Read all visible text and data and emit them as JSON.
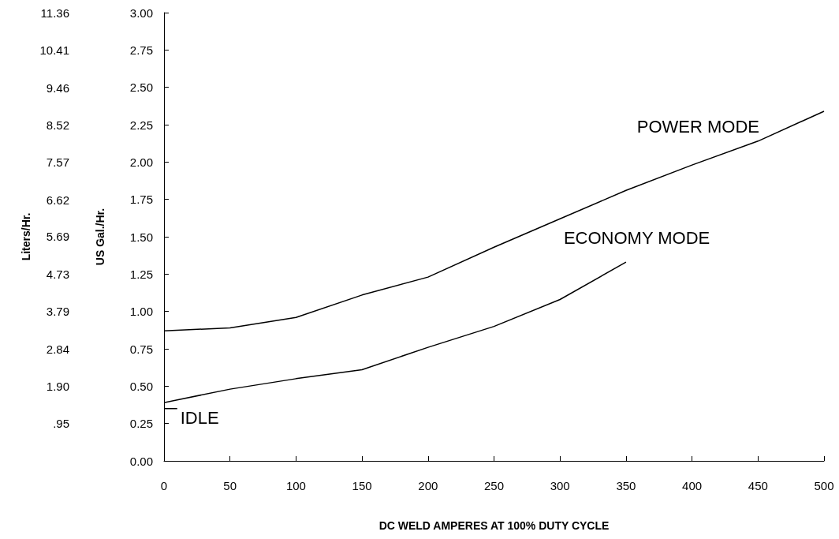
{
  "chart_data": {
    "type": "line",
    "xlabel": "DC WELD AMPERES AT 100% DUTY CYCLE",
    "ylabel": "US Gal./Hr.",
    "y2label": "Liters/Hr.",
    "xlim": [
      0,
      500
    ],
    "xticks": [
      0,
      50,
      100,
      150,
      200,
      250,
      300,
      350,
      400,
      450,
      500
    ],
    "ylim": [
      0,
      3
    ],
    "yticks": [
      {
        "value": 0,
        "label": "0.00"
      },
      {
        "value": 0.25,
        "label": "0.25"
      },
      {
        "value": 0.5,
        "label": "0.50"
      },
      {
        "value": 0.75,
        "label": "0.75"
      },
      {
        "value": 1,
        "label": "1.00"
      },
      {
        "value": 1.25,
        "label": "1.25"
      },
      {
        "value": 1.5,
        "label": "1.50"
      },
      {
        "value": 1.75,
        "label": "1.75"
      },
      {
        "value": 2,
        "label": "2.00"
      },
      {
        "value": 2.25,
        "label": "2.25"
      },
      {
        "value": 2.5,
        "label": "2.50"
      },
      {
        "value": 2.75,
        "label": "2.75"
      },
      {
        "value": 3,
        "label": "3.00"
      }
    ],
    "y2lim": [
      0,
      11.36
    ],
    "y2ticks": [
      {
        "value": 0.95,
        "label": ".95"
      },
      {
        "value": 1.9,
        "label": "1.90"
      },
      2.84,
      3.79,
      4.73,
      5.69,
      6.62,
      7.57,
      8.52,
      9.46,
      10.41,
      11.36
    ],
    "grid": false,
    "legend": false,
    "marker": "none",
    "line_style": "solid",
    "series": [
      {
        "name": "POWER MODE",
        "color": "#000000",
        "x": [
          0,
          50,
          100,
          150,
          200,
          250,
          300,
          350,
          400,
          450,
          500
        ],
        "values": [
          0.87,
          0.89,
          0.96,
          1.11,
          1.23,
          1.43,
          1.62,
          1.81,
          1.98,
          2.14,
          2.34
        ]
      },
      {
        "name": "ECONOMY MODE",
        "color": "#000000",
        "x": [
          0,
          50,
          100,
          150,
          200,
          250,
          300,
          350
        ],
        "values": [
          0.39,
          0.48,
          0.55,
          0.61,
          0.76,
          0.9,
          1.08,
          1.33
        ]
      },
      {
        "color": "#000000",
        "x": [
          0,
          10
        ],
        "values": [
          0.35,
          0.35
        ]
      }
    ],
    "annotations": [
      {
        "text": "IDLE",
        "x": 10,
        "y": 0.35
      }
    ]
  }
}
